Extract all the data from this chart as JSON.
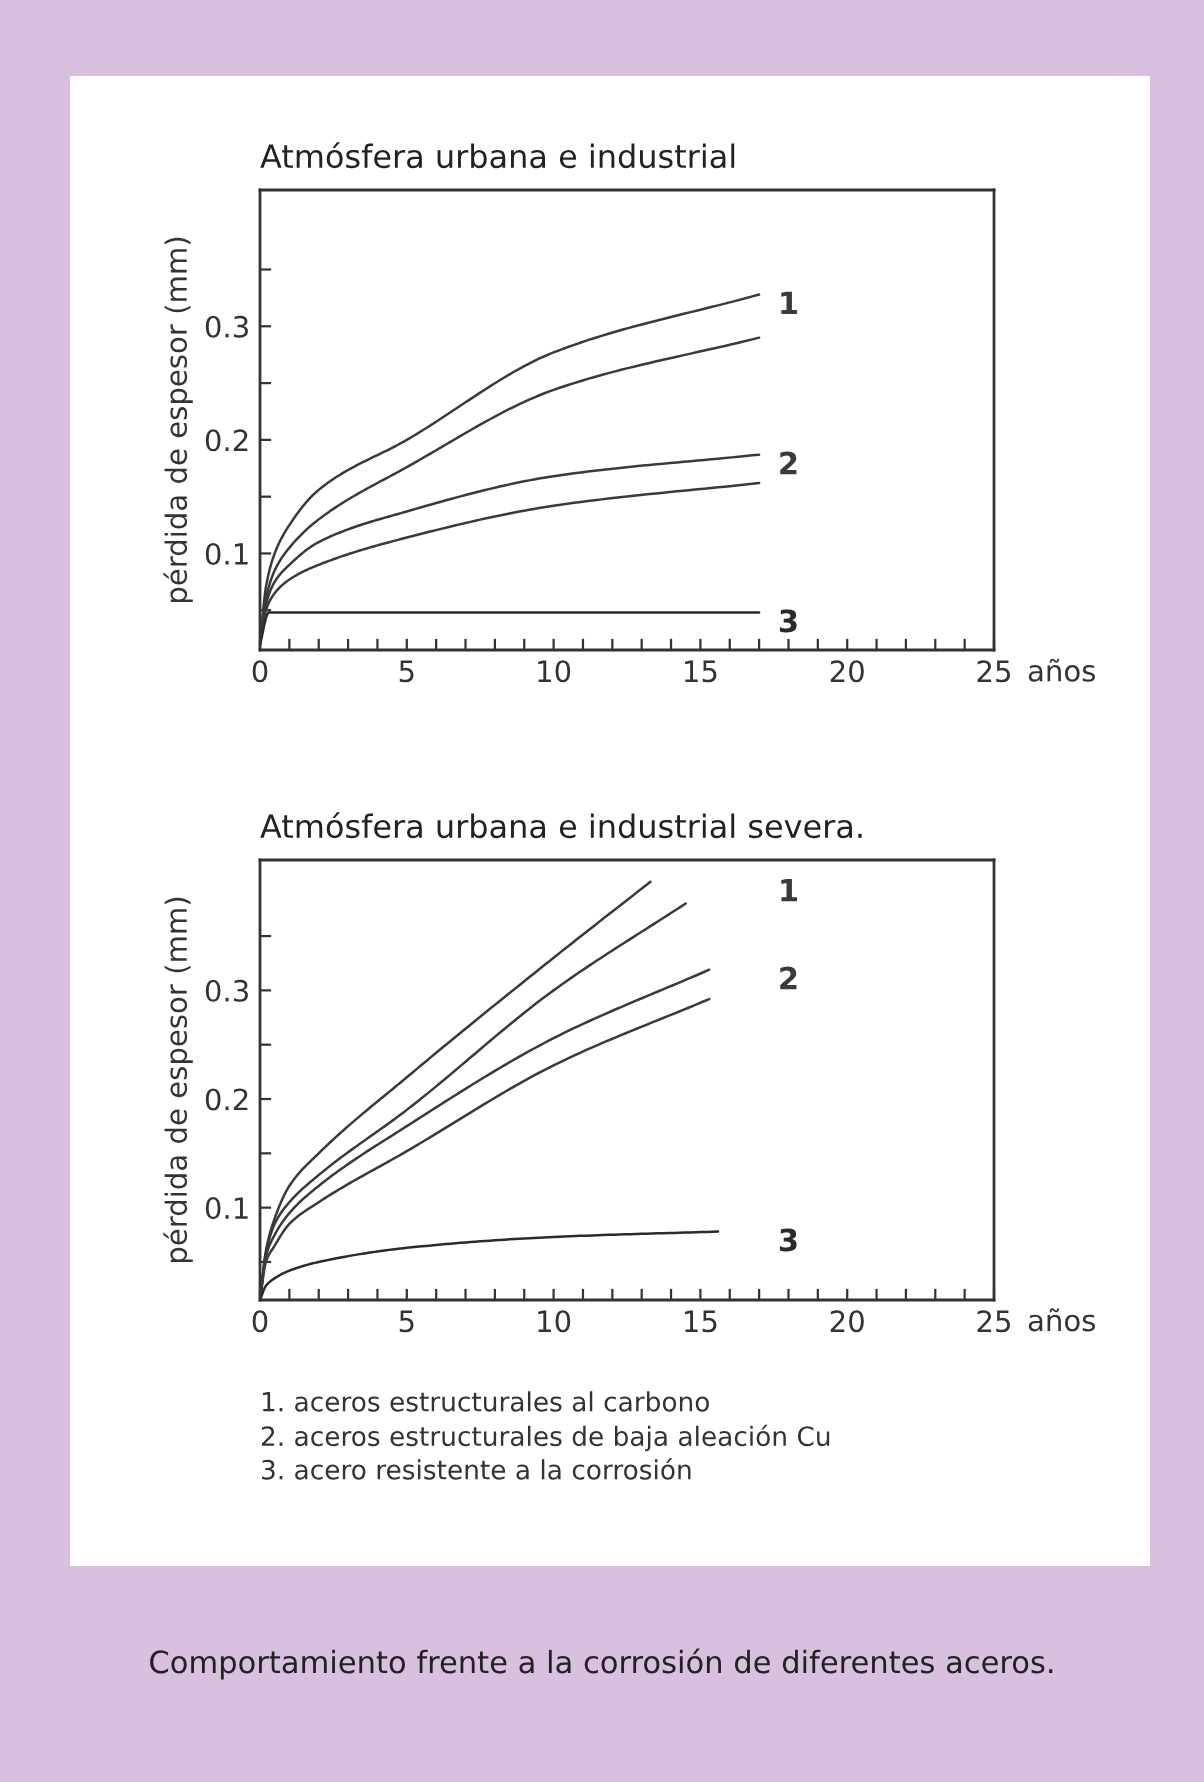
{
  "chart_data": [
    {
      "type": "line",
      "title": "Atmósfera urbana e industrial",
      "xlabel": "años",
      "ylabel": "pérdida de espesor (mm)",
      "xlim": [
        0,
        25
      ],
      "ylim": [
        0.015,
        0.42
      ],
      "xticks": [
        0,
        {
          "value": 1,
          "label": null
        },
        {
          "value": 2,
          "label": null
        },
        {
          "value": 3,
          "label": null
        },
        {
          "value": 4,
          "label": null
        },
        5,
        {
          "value": 6,
          "label": null
        },
        {
          "value": 7,
          "label": null
        },
        {
          "value": 8,
          "label": null
        },
        {
          "value": 9,
          "label": null
        },
        10,
        {
          "value": 11,
          "label": null
        },
        {
          "value": 12,
          "label": null
        },
        {
          "value": 13,
          "label": null
        },
        {
          "value": 14,
          "label": null
        },
        15,
        {
          "value": 16,
          "label": null
        },
        {
          "value": 17,
          "label": null
        },
        {
          "value": 18,
          "label": null
        },
        {
          "value": 19,
          "label": null
        },
        20,
        {
          "value": 21,
          "label": null
        },
        {
          "value": 22,
          "label": null
        },
        {
          "value": 23,
          "label": null
        },
        {
          "value": 24,
          "label": null
        },
        25
      ],
      "yticks": [
        {
          "value": 0.05,
          "label": null
        },
        0.1,
        {
          "value": 0.15,
          "label": null
        },
        0.2,
        {
          "value": 0.25,
          "label": null
        },
        0.3,
        {
          "value": 0.35,
          "label": null
        }
      ],
      "series": [
        {
          "name": "1",
          "color": "#3a3a3a",
          "x": [
            0,
            0.2,
            0.5,
            1,
            2,
            5,
            10,
            17
          ],
          "values": [
            0.02,
            0.07,
            0.1,
            0.125,
            0.156,
            0.2,
            0.277,
            0.328
          ]
        },
        {
          "color": "#3a3a3a",
          "x": [
            0,
            0.2,
            0.5,
            1,
            2,
            5,
            10,
            17
          ],
          "values": [
            0.02,
            0.06,
            0.085,
            0.105,
            0.13,
            0.176,
            0.244,
            0.29
          ]
        },
        {
          "name": "2",
          "color": "#3a3a3a",
          "x": [
            0,
            0.2,
            0.5,
            1,
            2,
            5,
            10,
            17
          ],
          "values": [
            0.02,
            0.055,
            0.075,
            0.09,
            0.11,
            0.137,
            0.168,
            0.187
          ]
        },
        {
          "color": "#3a3a3a",
          "x": [
            0,
            0.2,
            0.5,
            1,
            2,
            5,
            10,
            17
          ],
          "values": [
            0.02,
            0.05,
            0.065,
            0.077,
            0.09,
            0.114,
            0.142,
            0.162
          ]
        },
        {
          "name": "3",
          "color": "#2a2a2a",
          "x": [
            0,
            0.3,
            17
          ],
          "values": [
            0.02,
            0.048,
            0.048
          ]
        }
      ]
    },
    {
      "type": "line",
      "title": "Atmósfera urbana e industrial severa.",
      "xlabel": "años",
      "ylabel": "pérdida de espesor (mm)",
      "xlim": [
        0,
        25
      ],
      "ylim": [
        0.015,
        0.42
      ],
      "xticks": [
        0,
        {
          "value": 1,
          "label": null
        },
        {
          "value": 2,
          "label": null
        },
        {
          "value": 3,
          "label": null
        },
        {
          "value": 4,
          "label": null
        },
        5,
        {
          "value": 6,
          "label": null
        },
        {
          "value": 7,
          "label": null
        },
        {
          "value": 8,
          "label": null
        },
        {
          "value": 9,
          "label": null
        },
        10,
        {
          "value": 11,
          "label": null
        },
        {
          "value": 12,
          "label": null
        },
        {
          "value": 13,
          "label": null
        },
        {
          "value": 14,
          "label": null
        },
        15,
        {
          "value": 16,
          "label": null
        },
        {
          "value": 17,
          "label": null
        },
        {
          "value": 18,
          "label": null
        },
        {
          "value": 19,
          "label": null
        },
        20,
        {
          "value": 21,
          "label": null
        },
        {
          "value": 22,
          "label": null
        },
        {
          "value": 23,
          "label": null
        },
        {
          "value": 24,
          "label": null
        },
        25
      ],
      "yticks": [
        {
          "value": 0.05,
          "label": null
        },
        0.1,
        {
          "value": 0.15,
          "label": null
        },
        0.2,
        {
          "value": 0.25,
          "label": null
        },
        0.3,
        {
          "value": 0.35,
          "label": null
        }
      ],
      "series": [
        {
          "name": "1",
          "color": "#3a3a3a",
          "x": [
            0,
            0.2,
            0.5,
            1,
            2,
            5,
            10,
            13.3
          ],
          "values": [
            0.015,
            0.06,
            0.09,
            0.12,
            0.15,
            0.22,
            0.33,
            0.4
          ]
        },
        {
          "color": "#3a3a3a",
          "x": [
            0,
            0.2,
            0.5,
            1,
            2,
            5,
            10,
            14.5
          ],
          "values": [
            0.015,
            0.058,
            0.085,
            0.105,
            0.13,
            0.19,
            0.3,
            0.38
          ]
        },
        {
          "name": "2",
          "color": "#3a3a3a",
          "x": [
            0,
            0.2,
            0.5,
            1,
            2,
            5,
            10,
            15.3
          ],
          "values": [
            0.015,
            0.055,
            0.075,
            0.095,
            0.12,
            0.175,
            0.256,
            0.319
          ]
        },
        {
          "color": "#3a3a3a",
          "x": [
            0,
            0.2,
            0.5,
            1,
            2,
            5,
            10,
            15.3
          ],
          "values": [
            0.015,
            0.05,
            0.065,
            0.085,
            0.105,
            0.152,
            0.231,
            0.292
          ]
        },
        {
          "name": "3",
          "color": "#2a2a2a",
          "x": [
            0,
            0.2,
            0.5,
            1,
            2,
            5,
            10,
            15.6
          ],
          "values": [
            0.015,
            0.028,
            0.035,
            0.042,
            0.05,
            0.063,
            0.073,
            0.078
          ]
        }
      ],
      "annotations": [
        "1. aceros estructurales al carbono",
        "2. aceros estructurales de baja aleación Cu",
        "3. acero resistente a la corrosión",
        "Comportamiento frente a la corrosión de diferentes aceros."
      ]
    }
  ]
}
